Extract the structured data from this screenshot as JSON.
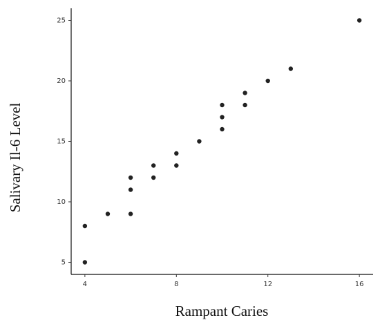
{
  "chart_data": {
    "type": "scatter",
    "xlabel": "Rampant Caries",
    "ylabel": "Salivary Il-6 Level",
    "x": [
      4,
      4,
      5,
      6,
      6,
      6,
      7,
      7,
      8,
      8,
      9,
      10,
      10,
      10,
      11,
      11,
      12,
      13,
      16
    ],
    "values": [
      5,
      8,
      9,
      9,
      11,
      12,
      12,
      13,
      13,
      14,
      15,
      16,
      17,
      18,
      18,
      19,
      20,
      21,
      25
    ],
    "color": "#222222",
    "xlim": [
      3.4,
      16.6
    ],
    "xticks": [
      4,
      8,
      12,
      16
    ],
    "ylim": [
      4,
      26
    ],
    "yticks": [
      5,
      10,
      15,
      20,
      25
    ],
    "grid": false
  }
}
